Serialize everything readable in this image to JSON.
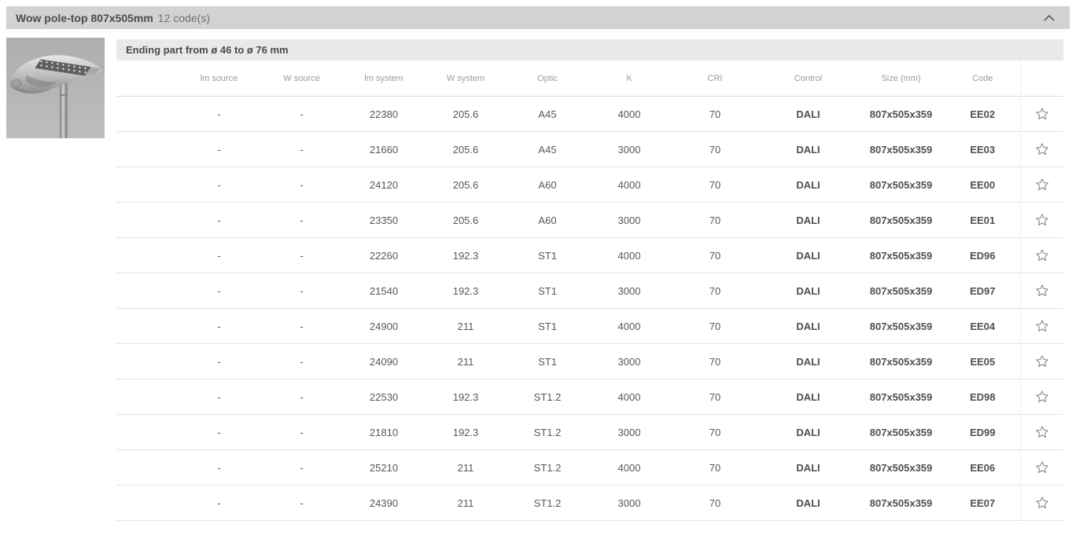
{
  "panel": {
    "title": "Wow pole-top 807x505mm",
    "codes_count_label": "12 code(s)",
    "collapse_icon": "chevron-up"
  },
  "section": {
    "title": "Ending part from ø 46 to ø 76 mm"
  },
  "product": {
    "image_alt": "Wow pole-top luminaire photo"
  },
  "table": {
    "columns": [
      "lm source",
      "W source",
      "lm system",
      "W system",
      "Optic",
      "K",
      "CRI",
      "Control",
      "Size (mm)",
      "Code"
    ],
    "favorite_icon": "star-outline",
    "rows": [
      [
        "-",
        "-",
        "22380",
        "205.6",
        "A45",
        "4000",
        "70",
        "DALI",
        "807x505x359",
        "EE02"
      ],
      [
        "-",
        "-",
        "21660",
        "205.6",
        "A45",
        "3000",
        "70",
        "DALI",
        "807x505x359",
        "EE03"
      ],
      [
        "-",
        "-",
        "24120",
        "205.6",
        "A60",
        "4000",
        "70",
        "DALI",
        "807x505x359",
        "EE00"
      ],
      [
        "-",
        "-",
        "23350",
        "205.6",
        "A60",
        "3000",
        "70",
        "DALI",
        "807x505x359",
        "EE01"
      ],
      [
        "-",
        "-",
        "22260",
        "192.3",
        "ST1",
        "4000",
        "70",
        "DALI",
        "807x505x359",
        "ED96"
      ],
      [
        "-",
        "-",
        "21540",
        "192.3",
        "ST1",
        "3000",
        "70",
        "DALI",
        "807x505x359",
        "ED97"
      ],
      [
        "-",
        "-",
        "24900",
        "211",
        "ST1",
        "4000",
        "70",
        "DALI",
        "807x505x359",
        "EE04"
      ],
      [
        "-",
        "-",
        "24090",
        "211",
        "ST1",
        "3000",
        "70",
        "DALI",
        "807x505x359",
        "EE05"
      ],
      [
        "-",
        "-",
        "22530",
        "192.3",
        "ST1.2",
        "4000",
        "70",
        "DALI",
        "807x505x359",
        "ED98"
      ],
      [
        "-",
        "-",
        "21810",
        "192.3",
        "ST1.2",
        "3000",
        "70",
        "DALI",
        "807x505x359",
        "ED99"
      ],
      [
        "-",
        "-",
        "25210",
        "211",
        "ST1.2",
        "4000",
        "70",
        "DALI",
        "807x505x359",
        "EE06"
      ],
      [
        "-",
        "-",
        "24390",
        "211",
        "ST1.2",
        "3000",
        "70",
        "DALI",
        "807x505x359",
        "EE07"
      ]
    ],
    "bold_column_indexes": [
      7,
      8,
      9
    ]
  },
  "colors": {
    "titlebar_bg": "#d2d2d2",
    "subheader_bg": "#e9e9e9",
    "title_text": "#4b4b4b",
    "header_text": "#9b9b9b",
    "value_text": "#575757",
    "row_border": "#e3e3e3",
    "star": "#8a8a8a",
    "image_bg": "#b4b4b4"
  }
}
